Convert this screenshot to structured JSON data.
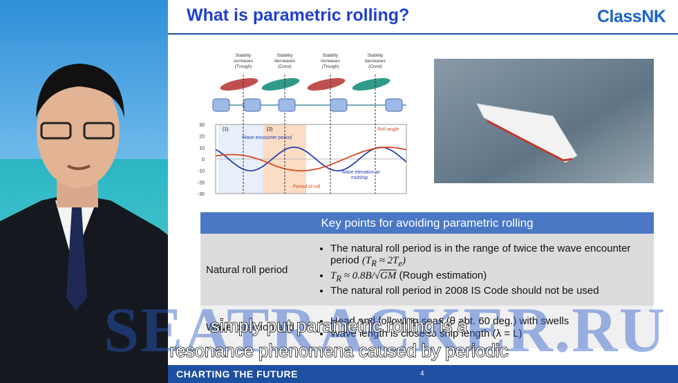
{
  "slide": {
    "title": "What is parametric rolling?",
    "logo": "ClassNK"
  },
  "diagram": {
    "stages": [
      [
        "Stability",
        "increases",
        "(Trough)"
      ],
      [
        "Stability",
        "decreases",
        "(Crest)"
      ],
      [
        "Stability",
        "increases",
        "(Trough)"
      ],
      [
        "Stability",
        "decreases",
        "(Crest)"
      ]
    ],
    "yticks": [
      30,
      20,
      10,
      0,
      -10,
      -20,
      -30
    ],
    "labels": {
      "phase1": "(1)",
      "phase2": "(2)",
      "encounter": "Wave encounter period",
      "roll": "Roll angle",
      "elevation": [
        "Wave elevation at",
        "midship"
      ],
      "period": "Period of roll"
    }
  },
  "table": {
    "header": "Key points for avoiding parametric rolling",
    "rows": [
      {
        "label": "Natural roll period",
        "items": [
          {
            "text": "The natural roll period is in the range of twice the wave encounter period",
            "formula": [
              "(T",
              "R",
              " ≈ 2T",
              "e",
              ")"
            ]
          },
          {
            "formula": [
              "T",
              "R",
              " ≈ 0.8B/√",
              "GM"
            ],
            "text": "(Rough estimation)"
          },
          {
            "text": "The natural roll period in 2008 IS Code should not be used"
          }
        ]
      },
      {
        "label": "Wave direction and",
        "items": [
          "Head and following seas (θ abt. 60 deg.) with swells",
          "Wave length is close to ship length (λ = L)"
        ]
      }
    ]
  },
  "footer": {
    "text": "CHARTING THE FUTURE",
    "page": "4"
  },
  "overlay": {
    "watermark": "SEATRACKER.RU",
    "subtitles": [
      "simply put parametric rolling is a",
      "resonance phenomena caused by periodic"
    ]
  }
}
